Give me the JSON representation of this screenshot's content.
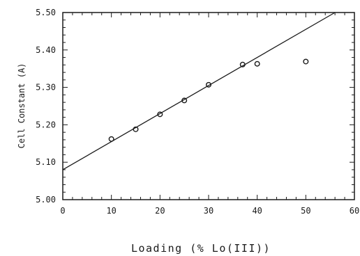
{
  "chart_data": {
    "type": "scatter",
    "title": "",
    "xlabel": "Loading (% Lo(III))",
    "ylabel": "Cell Constant (A)",
    "xlim": [
      0,
      60
    ],
    "ylim": [
      5.0,
      5.5
    ],
    "x_ticks": [
      0,
      10,
      20,
      30,
      40,
      50,
      60
    ],
    "y_ticks": [
      5.0,
      5.1,
      5.2,
      5.3,
      5.4,
      5.5
    ],
    "x_tick_labels": [
      "0",
      "10",
      "20",
      "30",
      "40",
      "50",
      "60"
    ],
    "y_tick_labels": [
      "5.00",
      "5.10",
      "5.20",
      "5.30",
      "5.40",
      "5.50"
    ],
    "grid": false,
    "legend": "none",
    "series": [
      {
        "marker": "open-circle",
        "x": [
          10,
          15,
          20,
          25,
          30,
          37,
          40,
          50
        ],
        "y": [
          5.162,
          5.188,
          5.228,
          5.265,
          5.307,
          5.361,
          5.363,
          5.369
        ]
      }
    ],
    "fit_line": {
      "x": [
        0,
        56
      ],
      "y": [
        5.08,
        5.5
      ]
    },
    "colors": {
      "ink": "#1a1a1a",
      "background": "#ffffff"
    }
  }
}
